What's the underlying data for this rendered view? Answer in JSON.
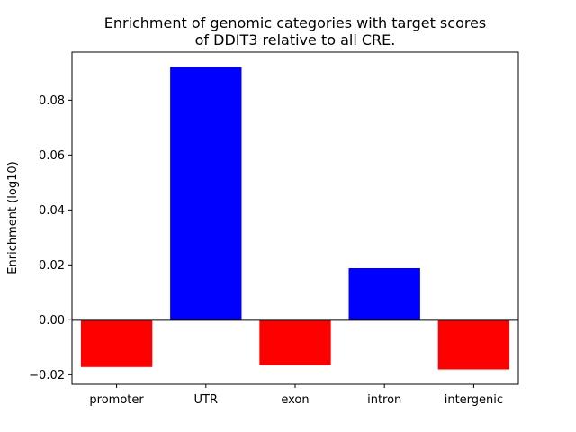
{
  "chart_data": {
    "type": "bar",
    "title": "Enrichment of genomic categories with target scores\nof DDIT3 relative to all CRE.",
    "title_lines": [
      "Enrichment of genomic categories with target scores",
      "of DDIT3 relative to all CRE."
    ],
    "xlabel": "",
    "ylabel": "Enrichment (log10)",
    "categories": [
      "promoter",
      "UTR",
      "exon",
      "intron",
      "intergenic"
    ],
    "values": [
      -0.0172,
      0.0921,
      -0.0165,
      0.0188,
      -0.0181
    ],
    "bar_colors": [
      "#ff0000",
      "#0000ff",
      "#ff0000",
      "#0000ff",
      "#ff0000"
    ],
    "ylim": [
      -0.0235,
      0.0975
    ],
    "yticks": [
      -0.02,
      0.0,
      0.02,
      0.04,
      0.06,
      0.08
    ],
    "ytick_labels": [
      "−0.02",
      "0.00",
      "0.02",
      "0.04",
      "0.06",
      "0.08"
    ],
    "grid": false,
    "legend": "none",
    "zero_line": true
  }
}
